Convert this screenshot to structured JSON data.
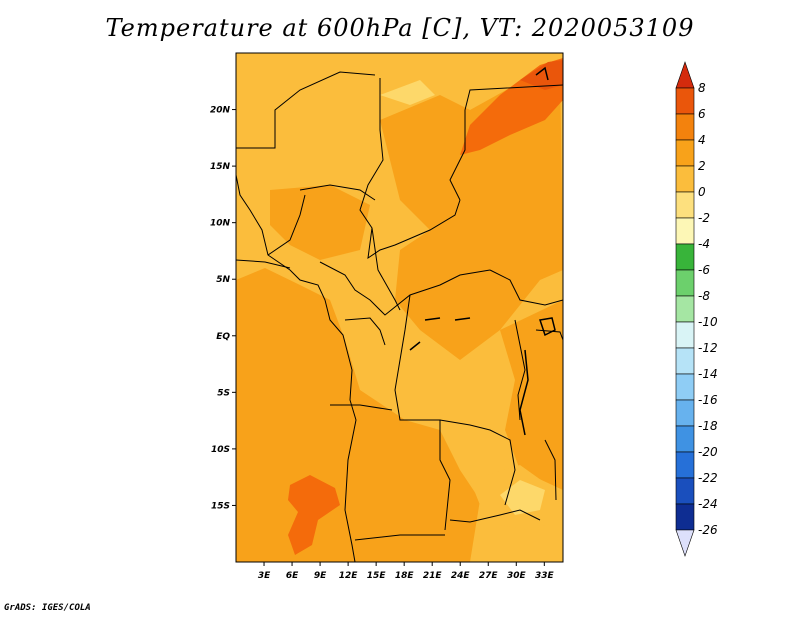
{
  "title": "Temperature at 600hPa [C], VT: 2020053109",
  "credit": "GrADS: IGES/COLA",
  "map": {
    "projection": "lat-lon",
    "lon_range": [
      0,
      35
    ],
    "lat_range": [
      -20,
      25
    ],
    "x_ticks": [
      {
        "value": 3,
        "label": "3E"
      },
      {
        "value": 6,
        "label": "6E"
      },
      {
        "value": 9,
        "label": "9E"
      },
      {
        "value": 12,
        "label": "12E"
      },
      {
        "value": 15,
        "label": "15E"
      },
      {
        "value": 18,
        "label": "18E"
      },
      {
        "value": 21,
        "label": "21E"
      },
      {
        "value": 24,
        "label": "24E"
      },
      {
        "value": 27,
        "label": "27E"
      },
      {
        "value": 30,
        "label": "30E"
      },
      {
        "value": 33,
        "label": "33E"
      }
    ],
    "y_ticks": [
      {
        "value": 20,
        "label": "20N"
      },
      {
        "value": 15,
        "label": "15N"
      },
      {
        "value": 10,
        "label": "10N"
      },
      {
        "value": 5,
        "label": "5N"
      },
      {
        "value": 0,
        "label": "EQ"
      },
      {
        "value": -5,
        "label": "5S"
      },
      {
        "value": -10,
        "label": "10S"
      },
      {
        "value": -15,
        "label": "15S"
      }
    ],
    "colors": {
      "-2_0": "#fdd86a",
      "0_2": "#fcba3f",
      "2_4": "#f9a01b",
      "4_6": "#f46b0b",
      "6_8": "#e93a0a"
    }
  },
  "chart_data": {
    "type": "heatmap",
    "title": "Temperature at 600hPa [C], VT: 2020053109",
    "units": "C",
    "xlim": [
      0,
      35
    ],
    "ylim": [
      -20,
      25
    ],
    "dominant_range": [
      0,
      4
    ],
    "regions": [
      {
        "description": "warm band Sudan/Chad-Sudan border",
        "approx_value": 5,
        "lon": [
          24,
          34
        ],
        "lat": [
          15,
          25
        ]
      },
      {
        "description": "warm patch off Angola coast",
        "approx_value": 5,
        "lon": [
          6,
          9
        ],
        "lat": [
          -18,
          -13
        ]
      },
      {
        "description": "cooler patch Mozambique/Malawi",
        "approx_value": -1,
        "lon": [
          26,
          32
        ],
        "lat": [
          -16,
          -12
        ]
      }
    ]
  },
  "colorbar": {
    "levels": [
      "8",
      "6",
      "4",
      "2",
      "0",
      "-2",
      "-4",
      "-6",
      "-8",
      "-10",
      "-12",
      "-14",
      "-16",
      "-18",
      "-20",
      "-22",
      "-24",
      "-26"
    ],
    "colors": [
      "#d42b0d",
      "#ea560b",
      "#f3820d",
      "#f8a21a",
      "#fbbd3c",
      "#fde07e",
      "#fdf7b6",
      "#38b43a",
      "#6cd06c",
      "#a5e6a3",
      "#d9f4f6",
      "#b6e3f7",
      "#8fcdf5",
      "#67b2ee",
      "#3f92e3",
      "#2670d8",
      "#1a4fbd",
      "#0e2d92",
      "#071566",
      "#dde0fb"
    ]
  }
}
